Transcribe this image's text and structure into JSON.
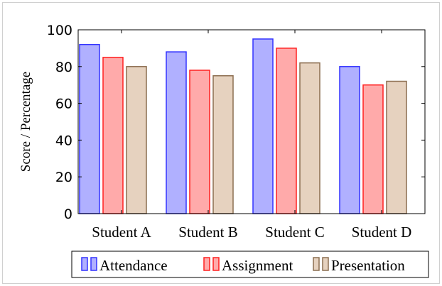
{
  "chart_data": {
    "type": "bar",
    "categories": [
      "Student A",
      "Student B",
      "Student C",
      "Student D"
    ],
    "series": [
      {
        "name": "Attendance",
        "values": [
          92,
          88,
          95,
          80
        ],
        "fill": "#b0b0ff",
        "stroke": "#3333ff"
      },
      {
        "name": "Assignment",
        "values": [
          85,
          78,
          90,
          70
        ],
        "fill": "#ffaaaa",
        "stroke": "#ff2020"
      },
      {
        "name": "Presentation",
        "values": [
          80,
          75,
          82,
          72
        ],
        "fill": "#e6d2bf",
        "stroke": "#8c6e50"
      }
    ],
    "title": "",
    "xlabel": "",
    "ylabel": "Score / Percentage",
    "ylim": [
      0,
      100
    ],
    "yticks": [
      0,
      20,
      40,
      60,
      80,
      100
    ],
    "grid": false,
    "legend_position": "bottom"
  }
}
